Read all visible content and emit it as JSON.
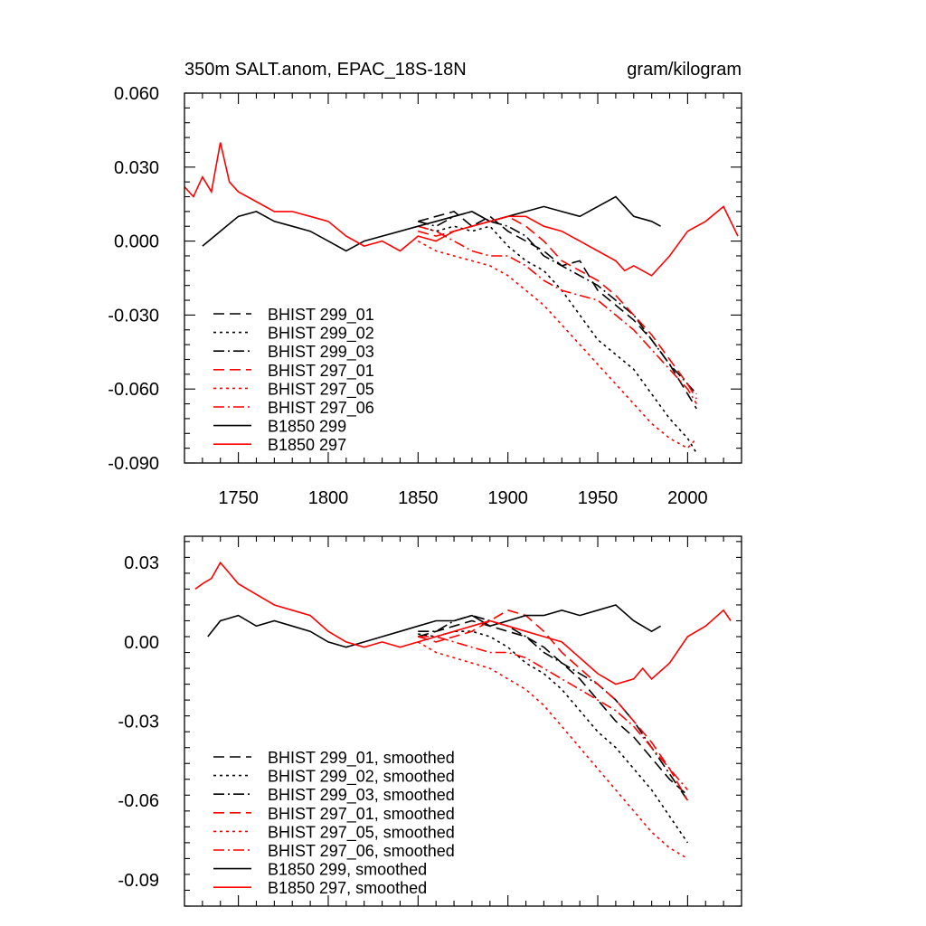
{
  "colors": {
    "black": "#000000",
    "red": "#ff0000"
  },
  "chart_data": [
    {
      "type": "line",
      "title": "350m SALT.anom, EPAC_18S-18N",
      "units": "gram/kilogram",
      "xlim": [
        1720,
        2030
      ],
      "ylim": [
        -0.09,
        0.06
      ],
      "x_ticks": [
        "1750",
        "1800",
        "1850",
        "1900",
        "1950",
        "2000"
      ],
      "y_ticks": [
        "0.060",
        "0.030",
        "0.000",
        "-0.030",
        "-0.060",
        "-0.090"
      ],
      "legend_position": "bottom-left",
      "grid": false,
      "series": [
        {
          "name": "BHIST 299_01",
          "color": "#000000",
          "dash": "dash",
          "x": [
            1850,
            1860,
            1870,
            1880,
            1890,
            1900,
            1910,
            1920,
            1930,
            1940,
            1950,
            1960,
            1970,
            1980,
            1990,
            2000,
            2005
          ],
          "y": [
            0.008,
            0.01,
            0.012,
            0.006,
            0.01,
            0.004,
            0.0,
            -0.004,
            -0.01,
            -0.008,
            -0.02,
            -0.026,
            -0.032,
            -0.04,
            -0.05,
            -0.062,
            -0.068
          ]
        },
        {
          "name": "BHIST 299_02",
          "color": "#000000",
          "dash": "dot",
          "x": [
            1850,
            1860,
            1870,
            1880,
            1890,
            1900,
            1910,
            1920,
            1930,
            1940,
            1950,
            1960,
            1970,
            1980,
            1990,
            2000,
            2005
          ],
          "y": [
            0.006,
            0.004,
            0.006,
            0.004,
            0.006,
            -0.002,
            -0.008,
            -0.012,
            -0.02,
            -0.03,
            -0.04,
            -0.046,
            -0.052,
            -0.062,
            -0.072,
            -0.08,
            -0.086
          ]
        },
        {
          "name": "BHIST 299_03",
          "color": "#000000",
          "dash": "dashdot",
          "x": [
            1850,
            1860,
            1870,
            1880,
            1890,
            1900,
            1910,
            1920,
            1930,
            1940,
            1950,
            1960,
            1970,
            1980,
            1990,
            2000,
            2005
          ],
          "y": [
            0.008,
            0.006,
            0.01,
            0.012,
            0.008,
            0.006,
            0.002,
            -0.006,
            -0.01,
            -0.014,
            -0.018,
            -0.024,
            -0.03,
            -0.04,
            -0.05,
            -0.058,
            -0.062
          ]
        },
        {
          "name": "BHIST 297_01",
          "color": "#ff0000",
          "dash": "dash",
          "x": [
            1850,
            1860,
            1870,
            1880,
            1890,
            1900,
            1910,
            1920,
            1930,
            1940,
            1950,
            1960,
            1970,
            1980,
            1990,
            2000,
            2005
          ],
          "y": [
            0.004,
            0.002,
            0.004,
            0.006,
            0.008,
            0.01,
            0.006,
            0.0,
            -0.008,
            -0.012,
            -0.016,
            -0.022,
            -0.03,
            -0.038,
            -0.048,
            -0.058,
            -0.064
          ]
        },
        {
          "name": "BHIST 297_05",
          "color": "#ff0000",
          "dash": "dot",
          "x": [
            1850,
            1860,
            1870,
            1880,
            1890,
            1900,
            1910,
            1920,
            1930,
            1940,
            1950,
            1960,
            1970,
            1980,
            1990,
            2000,
            2005
          ],
          "y": [
            0.0,
            -0.004,
            -0.006,
            -0.008,
            -0.01,
            -0.014,
            -0.02,
            -0.026,
            -0.034,
            -0.042,
            -0.05,
            -0.058,
            -0.066,
            -0.074,
            -0.08,
            -0.084,
            -0.08
          ]
        },
        {
          "name": "BHIST 297_06",
          "color": "#ff0000",
          "dash": "dashdot",
          "x": [
            1850,
            1860,
            1870,
            1880,
            1890,
            1900,
            1910,
            1920,
            1930,
            1940,
            1950,
            1960,
            1970,
            1980,
            1990,
            2000,
            2005
          ],
          "y": [
            0.006,
            0.004,
            0.0,
            -0.004,
            -0.006,
            -0.006,
            -0.01,
            -0.016,
            -0.02,
            -0.022,
            -0.024,
            -0.03,
            -0.036,
            -0.044,
            -0.052,
            -0.06,
            -0.066
          ]
        },
        {
          "name": "B1850 299",
          "color": "#000000",
          "dash": "solid",
          "x": [
            1730,
            1740,
            1750,
            1760,
            1770,
            1780,
            1790,
            1800,
            1810,
            1820,
            1830,
            1840,
            1850,
            1860,
            1870,
            1880,
            1890,
            1900,
            1910,
            1920,
            1930,
            1940,
            1950,
            1960,
            1970,
            1980,
            1985
          ],
          "y": [
            -0.002,
            0.004,
            0.01,
            0.012,
            0.008,
            0.006,
            0.004,
            0.0,
            -0.004,
            0.0,
            0.002,
            0.004,
            0.006,
            0.008,
            0.01,
            0.012,
            0.008,
            0.01,
            0.012,
            0.014,
            0.012,
            0.01,
            0.014,
            0.018,
            0.01,
            0.008,
            0.006
          ]
        },
        {
          "name": "B1850 297",
          "color": "#ff0000",
          "dash": "solid",
          "x": [
            1720,
            1725,
            1730,
            1735,
            1740,
            1745,
            1750,
            1760,
            1770,
            1780,
            1790,
            1800,
            1810,
            1820,
            1830,
            1840,
            1850,
            1860,
            1870,
            1880,
            1890,
            1900,
            1910,
            1920,
            1930,
            1940,
            1950,
            1960,
            1965,
            1970,
            1980,
            1990,
            2000,
            2010,
            2020,
            2028
          ],
          "y": [
            0.022,
            0.018,
            0.026,
            0.02,
            0.04,
            0.024,
            0.02,
            0.016,
            0.012,
            0.012,
            0.01,
            0.008,
            0.002,
            -0.002,
            0.0,
            -0.004,
            0.002,
            0.0,
            0.004,
            0.006,
            0.008,
            0.01,
            0.01,
            0.006,
            0.004,
            0.0,
            -0.004,
            -0.008,
            -0.012,
            -0.01,
            -0.014,
            -0.006,
            0.004,
            0.008,
            0.014,
            0.002
          ]
        }
      ]
    },
    {
      "type": "line",
      "xlim": [
        1720,
        2030
      ],
      "ylim": [
        -0.1,
        0.04
      ],
      "y_ticks": [
        "0.03",
        "0.00",
        "-0.03",
        "-0.06",
        "-0.09"
      ],
      "legend_position": "bottom-left",
      "grid": false,
      "series": [
        {
          "name": "BHIST 299_01, smoothed",
          "color": "#000000",
          "dash": "dash",
          "x": [
            1850,
            1860,
            1870,
            1880,
            1890,
            1900,
            1910,
            1920,
            1930,
            1940,
            1950,
            1960,
            1970,
            1980,
            1990,
            2000
          ],
          "y": [
            0.002,
            0.004,
            0.006,
            0.008,
            0.006,
            0.004,
            0.002,
            -0.002,
            -0.008,
            -0.014,
            -0.022,
            -0.03,
            -0.036,
            -0.044,
            -0.052,
            -0.058
          ]
        },
        {
          "name": "BHIST 299_02, smoothed",
          "color": "#000000",
          "dash": "dot",
          "x": [
            1850,
            1860,
            1870,
            1880,
            1890,
            1900,
            1910,
            1920,
            1930,
            1940,
            1950,
            1960,
            1970,
            1980,
            1990,
            2000
          ],
          "y": [
            0.003,
            0.002,
            0.004,
            0.004,
            0.002,
            -0.002,
            -0.008,
            -0.012,
            -0.018,
            -0.026,
            -0.034,
            -0.04,
            -0.048,
            -0.056,
            -0.066,
            -0.076
          ]
        },
        {
          "name": "BHIST 299_03, smoothed",
          "color": "#000000",
          "dash": "dashdot",
          "x": [
            1850,
            1860,
            1870,
            1880,
            1890,
            1900,
            1910,
            1920,
            1930,
            1940,
            1950,
            1960,
            1970,
            1980,
            1990,
            2000
          ],
          "y": [
            0.004,
            0.004,
            0.008,
            0.01,
            0.008,
            0.006,
            0.002,
            -0.004,
            -0.008,
            -0.012,
            -0.016,
            -0.022,
            -0.03,
            -0.04,
            -0.05,
            -0.06
          ]
        },
        {
          "name": "BHIST 297_01, smoothed",
          "color": "#ff0000",
          "dash": "dash",
          "x": [
            1850,
            1860,
            1870,
            1880,
            1890,
            1900,
            1910,
            1920,
            1930,
            1940,
            1950,
            1960,
            1970,
            1980,
            1990,
            2000
          ],
          "y": [
            0.002,
            0.0,
            0.002,
            0.004,
            0.008,
            0.012,
            0.01,
            0.004,
            -0.004,
            -0.01,
            -0.016,
            -0.022,
            -0.03,
            -0.038,
            -0.048,
            -0.06
          ]
        },
        {
          "name": "BHIST 297_05, smoothed",
          "color": "#ff0000",
          "dash": "dot",
          "x": [
            1850,
            1860,
            1870,
            1880,
            1890,
            1900,
            1910,
            1920,
            1930,
            1940,
            1950,
            1960,
            1970,
            1980,
            1990,
            2000
          ],
          "y": [
            0.0,
            -0.004,
            -0.006,
            -0.008,
            -0.01,
            -0.014,
            -0.018,
            -0.024,
            -0.032,
            -0.04,
            -0.048,
            -0.056,
            -0.064,
            -0.072,
            -0.078,
            -0.082
          ]
        },
        {
          "name": "BHIST 297_06, smoothed",
          "color": "#ff0000",
          "dash": "dashdot",
          "x": [
            1850,
            1860,
            1870,
            1880,
            1890,
            1900,
            1910,
            1920,
            1930,
            1940,
            1950,
            1960,
            1970,
            1980,
            1990,
            2000
          ],
          "y": [
            0.002,
            0.002,
            0.0,
            -0.002,
            -0.004,
            -0.004,
            -0.006,
            -0.01,
            -0.014,
            -0.018,
            -0.022,
            -0.026,
            -0.032,
            -0.04,
            -0.048,
            -0.056
          ]
        },
        {
          "name": "B1850 299, smoothed",
          "color": "#000000",
          "dash": "solid",
          "x": [
            1733,
            1740,
            1750,
            1760,
            1770,
            1780,
            1790,
            1800,
            1810,
            1820,
            1830,
            1840,
            1850,
            1860,
            1870,
            1880,
            1890,
            1900,
            1910,
            1920,
            1930,
            1940,
            1950,
            1960,
            1970,
            1980,
            1985
          ],
          "y": [
            0.002,
            0.008,
            0.01,
            0.006,
            0.008,
            0.006,
            0.004,
            0.0,
            -0.002,
            0.0,
            0.002,
            0.004,
            0.006,
            0.008,
            0.008,
            0.01,
            0.006,
            0.008,
            0.01,
            0.01,
            0.012,
            0.01,
            0.012,
            0.014,
            0.008,
            0.004,
            0.006
          ]
        },
        {
          "name": "B1850 297, smoothed",
          "color": "#ff0000",
          "dash": "solid",
          "x": [
            1726,
            1730,
            1735,
            1740,
            1745,
            1750,
            1760,
            1770,
            1780,
            1790,
            1800,
            1810,
            1820,
            1830,
            1840,
            1850,
            1860,
            1870,
            1880,
            1890,
            1900,
            1910,
            1920,
            1930,
            1940,
            1950,
            1960,
            1970,
            1975,
            1980,
            1990,
            2000,
            2010,
            2020,
            2024
          ],
          "y": [
            0.02,
            0.022,
            0.024,
            0.03,
            0.026,
            0.022,
            0.018,
            0.014,
            0.012,
            0.01,
            0.004,
            0.0,
            -0.002,
            0.0,
            -0.002,
            0.0,
            0.002,
            0.004,
            0.006,
            0.008,
            0.006,
            0.004,
            0.002,
            0.0,
            -0.006,
            -0.012,
            -0.016,
            -0.014,
            -0.01,
            -0.014,
            -0.008,
            0.002,
            0.006,
            0.012,
            0.008
          ]
        }
      ]
    }
  ]
}
